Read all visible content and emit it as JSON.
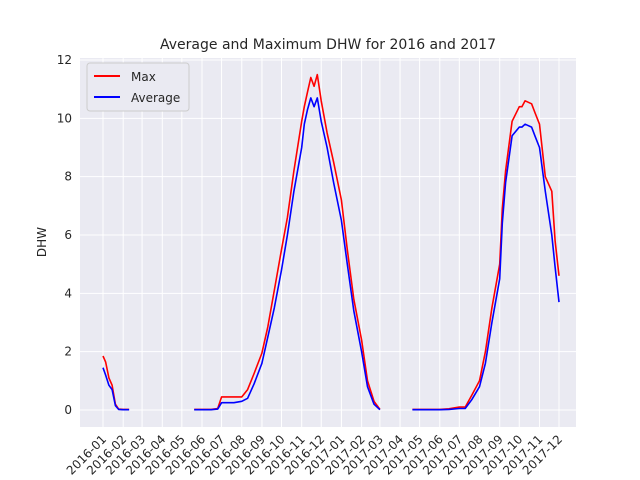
{
  "chart_data": {
    "type": "line",
    "title": "Average and Maximum DHW for 2016 and 2017",
    "xlabel": "",
    "ylabel": "DHW",
    "ylim": [
      0,
      12
    ],
    "yticks": [
      0,
      2,
      4,
      6,
      8,
      10,
      12
    ],
    "xticks": [
      "2016-01",
      "2016-02",
      "2016-03",
      "2016-04",
      "2016-05",
      "2016-06",
      "2016-07",
      "2016-08",
      "2016-09",
      "2016-10",
      "2016-11",
      "2016-12",
      "2017-01",
      "2017-02",
      "2017-03",
      "2017-04",
      "2017-05",
      "2017-06",
      "2017-07",
      "2017-08",
      "2017-09",
      "2017-10",
      "2017-11",
      "2017-12"
    ],
    "grid": true,
    "legend_position": "top-left",
    "background": "#eaeaf2",
    "series": [
      {
        "name": "Max",
        "color": "#ff0000",
        "segments": [
          {
            "x": [
              "2016-01-01",
              "2016-01-05",
              "2016-01-10",
              "2016-01-15",
              "2016-01-20",
              "2016-01-25",
              "2016-02-01",
              "2016-02-10"
            ],
            "y": [
              1.85,
              1.65,
              1.1,
              0.85,
              0.2,
              0.03,
              0.02,
              0.02
            ]
          },
          {
            "x": [
              "2016-05-20",
              "2016-06-01",
              "2016-06-15",
              "2016-06-25",
              "2016-07-01",
              "2016-07-10",
              "2016-07-20",
              "2016-08-01",
              "2016-08-10",
              "2016-08-20",
              "2016-09-01",
              "2016-09-10",
              "2016-09-20",
              "2016-10-01",
              "2016-10-10",
              "2016-10-20",
              "2016-11-01",
              "2016-11-05",
              "2016-11-10",
              "2016-11-15",
              "2016-11-20",
              "2016-11-25",
              "2016-12-01",
              "2016-12-10",
              "2016-12-20",
              "2017-01-01",
              "2017-01-10",
              "2017-01-20",
              "2017-02-01",
              "2017-02-10",
              "2017-02-20",
              "2017-03-01"
            ],
            "y": [
              0.02,
              0.02,
              0.02,
              0.05,
              0.45,
              0.45,
              0.45,
              0.45,
              0.7,
              1.25,
              1.95,
              2.85,
              4.1,
              5.5,
              6.6,
              8.2,
              9.9,
              10.4,
              10.9,
              11.4,
              11.1,
              11.5,
              10.6,
              9.5,
              8.5,
              7.2,
              5.5,
              3.8,
              2.4,
              1.0,
              0.3,
              0.02
            ]
          },
          {
            "x": [
              "2017-04-20",
              "2017-05-10",
              "2017-06-01",
              "2017-06-15",
              "2017-07-01",
              "2017-07-10",
              "2017-07-20",
              "2017-08-01",
              "2017-08-10",
              "2017-08-20",
              "2017-09-01",
              "2017-09-05",
              "2017-09-10",
              "2017-09-20",
              "2017-10-01",
              "2017-10-05",
              "2017-10-10",
              "2017-10-20",
              "2017-10-25",
              "2017-11-01",
              "2017-11-10",
              "2017-11-20",
              "2017-11-25",
              "2017-12-01"
            ],
            "y": [
              0.02,
              0.02,
              0.02,
              0.04,
              0.1,
              0.1,
              0.5,
              1.0,
              2.0,
              3.5,
              5.0,
              6.9,
              8.2,
              9.9,
              10.4,
              10.4,
              10.6,
              10.5,
              10.2,
              9.8,
              8.0,
              7.5,
              5.8,
              4.6
            ]
          }
        ]
      },
      {
        "name": "Average",
        "color": "#0000ff",
        "segments": [
          {
            "x": [
              "2016-01-01",
              "2016-01-05",
              "2016-01-10",
              "2016-01-15",
              "2016-01-20",
              "2016-01-25",
              "2016-02-01",
              "2016-02-10"
            ],
            "y": [
              1.45,
              1.2,
              0.85,
              0.7,
              0.15,
              0.02,
              0.01,
              0.01
            ]
          },
          {
            "x": [
              "2016-05-20",
              "2016-06-01",
              "2016-06-15",
              "2016-06-25",
              "2016-07-01",
              "2016-07-10",
              "2016-07-20",
              "2016-08-01",
              "2016-08-10",
              "2016-08-20",
              "2016-09-01",
              "2016-09-10",
              "2016-09-20",
              "2016-10-01",
              "2016-10-10",
              "2016-10-20",
              "2016-11-01",
              "2016-11-05",
              "2016-11-10",
              "2016-11-15",
              "2016-11-20",
              "2016-11-25",
              "2016-12-01",
              "2016-12-10",
              "2016-12-20",
              "2017-01-01",
              "2017-01-10",
              "2017-01-20",
              "2017-02-01",
              "2017-02-10",
              "2017-02-20",
              "2017-03-01"
            ],
            "y": [
              0.01,
              0.01,
              0.01,
              0.03,
              0.25,
              0.25,
              0.25,
              0.3,
              0.4,
              0.9,
              1.6,
              2.5,
              3.5,
              4.8,
              6.0,
              7.5,
              9.0,
              9.8,
              10.3,
              10.7,
              10.4,
              10.7,
              9.9,
              9.0,
              7.8,
              6.5,
              5.0,
              3.4,
              2.0,
              0.8,
              0.2,
              0.01
            ]
          },
          {
            "x": [
              "2017-04-20",
              "2017-05-10",
              "2017-06-01",
              "2017-06-15",
              "2017-07-01",
              "2017-07-10",
              "2017-07-20",
              "2017-08-01",
              "2017-08-10",
              "2017-08-20",
              "2017-09-01",
              "2017-09-05",
              "2017-09-10",
              "2017-09-20",
              "2017-10-01",
              "2017-10-05",
              "2017-10-10",
              "2017-10-20",
              "2017-10-25",
              "2017-11-01",
              "2017-11-10",
              "2017-11-20",
              "2017-11-25",
              "2017-12-01"
            ],
            "y": [
              0.01,
              0.01,
              0.01,
              0.02,
              0.05,
              0.05,
              0.35,
              0.8,
              1.6,
              3.0,
              4.5,
              6.4,
              7.8,
              9.4,
              9.7,
              9.7,
              9.8,
              9.7,
              9.4,
              9.0,
              7.5,
              6.0,
              4.9,
              3.7
            ]
          }
        ]
      }
    ]
  }
}
